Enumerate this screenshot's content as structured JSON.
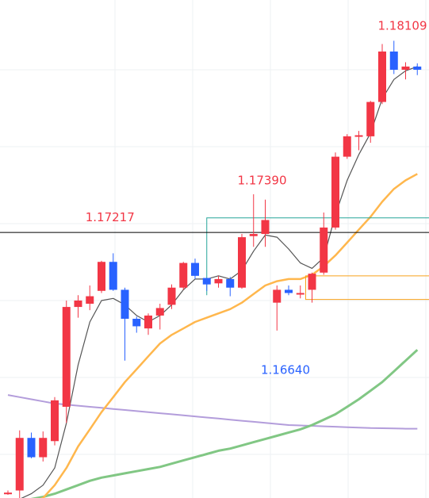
{
  "chart_data": {
    "type": "candlestick",
    "ylim": [
      1.1598,
      1.183
    ],
    "grid": true,
    "colors": {
      "bull": "#f23645",
      "bear": "#2962ff",
      "hline": "#000000",
      "ma_fast": "#555555",
      "ma_mid": "#ffb74d",
      "ma_slow_green": "#81c784",
      "ma_slow_purple": "#b39ddb",
      "box_teal": "#26a69a",
      "box_orange": "#f7a21b",
      "label_red": "#f23645",
      "label_blue": "#2962ff",
      "grid": "#eef0f3"
    },
    "candles": [
      {
        "o": 1.16005,
        "h": 1.16015,
        "l": 1.15995,
        "c": 1.16005
      },
      {
        "o": 1.16015,
        "h": 1.16295,
        "l": 1.1598,
        "c": 1.1626
      },
      {
        "o": 1.1626,
        "h": 1.16285,
        "l": 1.16165,
        "c": 1.1617
      },
      {
        "o": 1.1617,
        "h": 1.1629,
        "l": 1.1615,
        "c": 1.1626
      },
      {
        "o": 1.16245,
        "h": 1.1645,
        "l": 1.16225,
        "c": 1.16435
      },
      {
        "o": 1.16405,
        "h": 1.169,
        "l": 1.1633,
        "c": 1.1687
      },
      {
        "o": 1.1687,
        "h": 1.16925,
        "l": 1.1682,
        "c": 1.169
      },
      {
        "o": 1.16885,
        "h": 1.1697,
        "l": 1.16855,
        "c": 1.1692
      },
      {
        "o": 1.16945,
        "h": 1.17085,
        "l": 1.16935,
        "c": 1.1708
      },
      {
        "o": 1.1708,
        "h": 1.1712,
        "l": 1.16945,
        "c": 1.1695
      },
      {
        "o": 1.1695,
        "h": 1.1696,
        "l": 1.1662,
        "c": 1.16815
      },
      {
        "o": 1.16815,
        "h": 1.16825,
        "l": 1.1675,
        "c": 1.1678
      },
      {
        "o": 1.1677,
        "h": 1.1684,
        "l": 1.1674,
        "c": 1.1683
      },
      {
        "o": 1.1683,
        "h": 1.16885,
        "l": 1.16765,
        "c": 1.16865
      },
      {
        "o": 1.1688,
        "h": 1.16975,
        "l": 1.1686,
        "c": 1.1696
      },
      {
        "o": 1.1696,
        "h": 1.1708,
        "l": 1.1695,
        "c": 1.17075
      },
      {
        "o": 1.17075,
        "h": 1.17095,
        "l": 1.17,
        "c": 1.17015
      },
      {
        "o": 1.17005,
        "h": 1.17005,
        "l": 1.16945,
        "c": 1.16975
      },
      {
        "o": 1.1698,
        "h": 1.17015,
        "l": 1.1696,
        "c": 1.17
      },
      {
        "o": 1.17,
        "h": 1.1701,
        "l": 1.1692,
        "c": 1.1696
      },
      {
        "o": 1.1696,
        "h": 1.1721,
        "l": 1.16955,
        "c": 1.17195
      },
      {
        "o": 1.172,
        "h": 1.17395,
        "l": 1.1715,
        "c": 1.1721
      },
      {
        "o": 1.1721,
        "h": 1.1737,
        "l": 1.1715,
        "c": 1.17275
      },
      {
        "o": 1.1689,
        "h": 1.1697,
        "l": 1.1676,
        "c": 1.1695
      },
      {
        "o": 1.1695,
        "h": 1.1697,
        "l": 1.16925,
        "c": 1.16935
      },
      {
        "o": 1.16935,
        "h": 1.1697,
        "l": 1.1691,
        "c": 1.16935
      },
      {
        "o": 1.1695,
        "h": 1.1703,
        "l": 1.1689,
        "c": 1.17025
      },
      {
        "o": 1.1703,
        "h": 1.1731,
        "l": 1.1702,
        "c": 1.1724
      },
      {
        "o": 1.1724,
        "h": 1.1759,
        "l": 1.1723,
        "c": 1.1757
      },
      {
        "o": 1.1757,
        "h": 1.17675,
        "l": 1.1756,
        "c": 1.17665
      },
      {
        "o": 1.17665,
        "h": 1.1769,
        "l": 1.176,
        "c": 1.1767
      },
      {
        "o": 1.17665,
        "h": 1.1783,
        "l": 1.17635,
        "c": 1.17825
      },
      {
        "o": 1.17825,
        "h": 1.18095,
        "l": 1.17815,
        "c": 1.1806
      },
      {
        "o": 1.1806,
        "h": 1.1811,
        "l": 1.17955,
        "c": 1.17975
      },
      {
        "o": 1.17975,
        "h": 1.1801,
        "l": 1.1793,
        "c": 1.1799
      },
      {
        "o": 1.1799,
        "h": 1.18005,
        "l": 1.1795,
        "c": 1.17975
      }
    ],
    "ma_fast": [
      1.1596,
      1.15975,
      1.16,
      1.1604,
      1.1612,
      1.1633,
      1.166,
      1.168,
      1.169,
      1.1691,
      1.1688,
      1.1683,
      1.168,
      1.1683,
      1.1688,
      1.1695,
      1.17,
      1.17,
      1.17015,
      1.17,
      1.1704,
      1.1713,
      1.17205,
      1.17195,
      1.1714,
      1.17075,
      1.1705,
      1.171,
      1.173,
      1.1746,
      1.1758,
      1.1768,
      1.1784,
      1.1793,
      1.1797,
      1.1799
    ],
    "ma_mid": [
      1.15975,
      1.15965,
      1.1596,
      1.1598,
      1.1604,
      1.1612,
      1.1622,
      1.163,
      1.1638,
      1.1645,
      1.1652,
      1.1658,
      1.1664,
      1.167,
      1.1674,
      1.1677,
      1.168,
      1.1682,
      1.1684,
      1.1686,
      1.1689,
      1.1693,
      1.1697,
      1.1699,
      1.17,
      1.17,
      1.1702,
      1.1706,
      1.1711,
      1.1717,
      1.1723,
      1.1729,
      1.1736,
      1.1742,
      1.1746,
      1.1749
    ],
    "ma_slow_green": [
      1.1597,
      1.1597,
      1.15975,
      1.15985,
      1.16,
      1.1602,
      1.1604,
      1.1606,
      1.16075,
      1.16085,
      1.16095,
      1.16105,
      1.16115,
      1.16125,
      1.1614,
      1.16155,
      1.1617,
      1.16185,
      1.162,
      1.1621,
      1.16225,
      1.1624,
      1.16255,
      1.1627,
      1.16285,
      1.163,
      1.1632,
      1.16345,
      1.1637,
      1.16405,
      1.1644,
      1.1648,
      1.1652,
      1.1657,
      1.1662,
      1.1667
    ],
    "ma_slow_purple": [
      1.1646,
      1.1645,
      1.1644,
      1.1643,
      1.1642,
      1.16415,
      1.1641,
      1.16405,
      1.164,
      1.16395,
      1.1639,
      1.16385,
      1.1638,
      1.16375,
      1.1637,
      1.16365,
      1.1636,
      1.16355,
      1.1635,
      1.16345,
      1.1634,
      1.16335,
      1.1633,
      1.16325,
      1.1632,
      1.16318,
      1.16316,
      1.16314,
      1.16312,
      1.1631,
      1.16308,
      1.16306,
      1.16305,
      1.16304,
      1.16303,
      1.16303
    ],
    "horizontal_line": 1.17217,
    "box_teal": {
      "from_index": 17,
      "to_index": 35,
      "top": 1.17285,
      "bottom": 1.16925
    },
    "box_orange": {
      "from_index": 26,
      "to_index": 35,
      "top": 1.17015,
      "bottom": 1.16905
    },
    "annotations": [
      {
        "text": "1.17217",
        "index": 9,
        "price": 1.17217,
        "color": "red"
      },
      {
        "text": "1.17390",
        "index": 22,
        "price": 1.1739,
        "color": "red"
      },
      {
        "text": "1.16640",
        "index": 24,
        "price": 1.1664,
        "color": "blue"
      },
      {
        "text": "1.18109",
        "index": 34,
        "price": 1.18109,
        "color": "red"
      }
    ]
  }
}
